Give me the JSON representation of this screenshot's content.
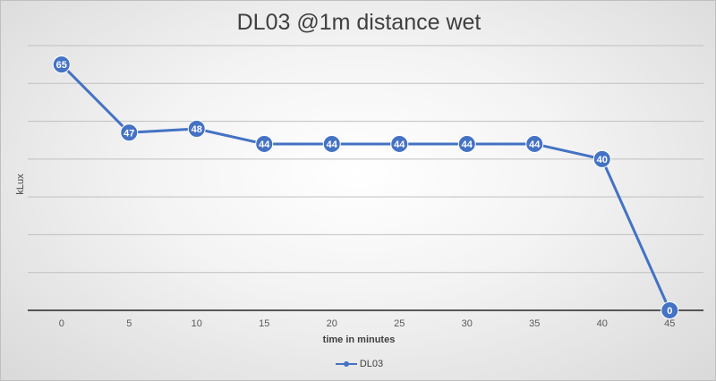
{
  "chart_data": {
    "type": "line",
    "title": "DL03 @1m distance wet",
    "xlabel": "time in minutes",
    "ylabel": "kLux",
    "categories": [
      "0",
      "5",
      "10",
      "15",
      "20",
      "25",
      "30",
      "35",
      "40",
      "45"
    ],
    "series": [
      {
        "name": "DL03",
        "values": [
          65,
          47,
          48,
          44,
          44,
          44,
          44,
          44,
          40,
          0
        ],
        "color": "#4472C4"
      }
    ],
    "ylim": [
      0,
      70
    ],
    "grid": true,
    "data_labels": true,
    "legend": "bottom"
  }
}
